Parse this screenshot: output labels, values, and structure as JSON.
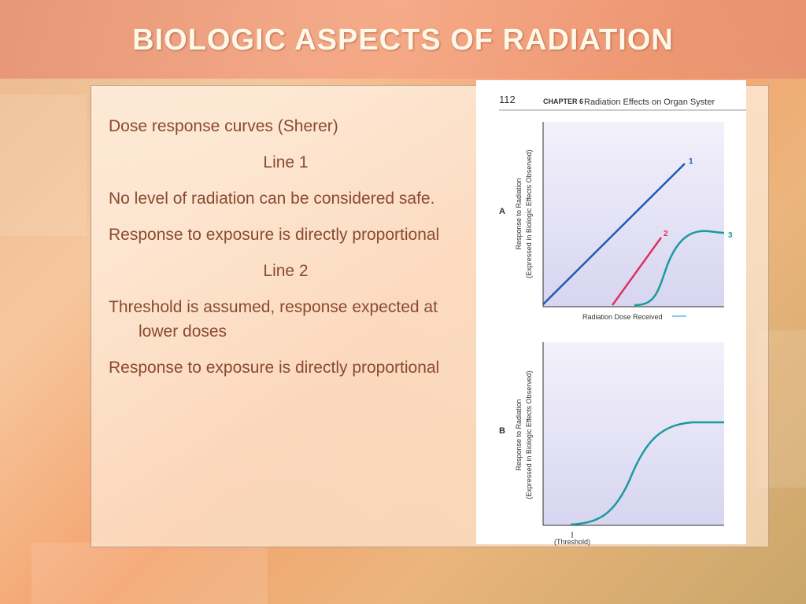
{
  "title": "BIOLOGIC ASPECTS OF RADIATION",
  "paragraphs": [
    "Dose response  curves (Sherer)",
    "Line 1",
    "No level of radiation can be considered safe.",
    "Response to exposure is directly proportional",
    "Line 2",
    "Threshold is assumed, response expected at lower doses",
    "Response to exposure is directly proportional"
  ],
  "figure": {
    "page_number": "112",
    "chapter": "CHAPTER 6",
    "chapter_title": "Radiation Effects on Organ Syster",
    "panel_a": {
      "label": "A",
      "y_label": "Response to Radiation",
      "y_label_note": "(Expressed in Biologic Effects Observed)",
      "x_label": "Radiation Dose Received",
      "curve_labels": [
        "1",
        "2",
        "3"
      ]
    },
    "panel_b": {
      "label": "B",
      "y_label": "Response to Radiation",
      "y_label_note": "(Expressed in Biologic Effects Observed)",
      "x_label": "(Threshold)"
    }
  }
}
